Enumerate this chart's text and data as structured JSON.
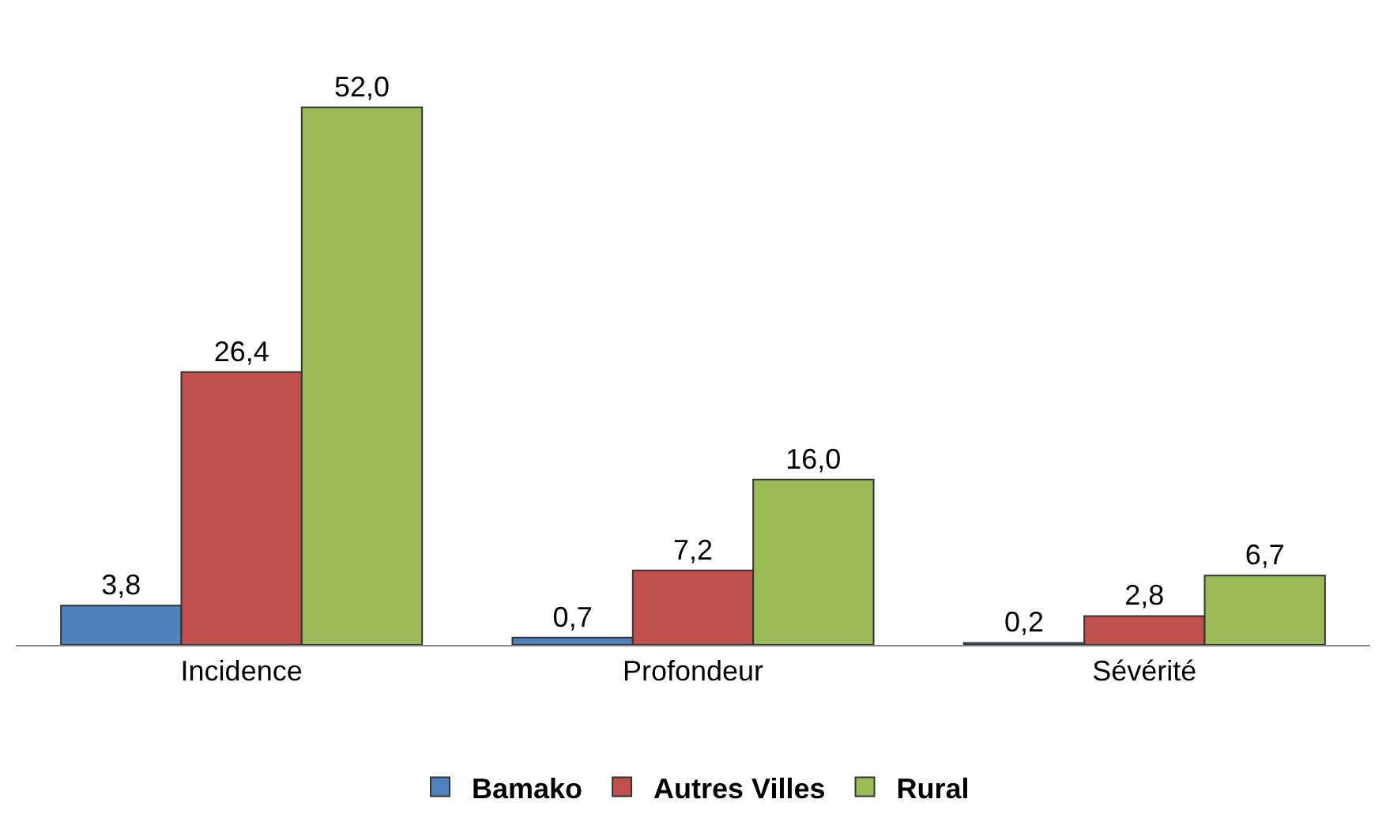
{
  "chart_data": {
    "type": "bar",
    "categories": [
      "Incidence",
      "Profondeur",
      "Sévérité"
    ],
    "series": [
      {
        "name": "Bamako",
        "color": "#4f81bd",
        "values": [
          3.8,
          0.7,
          0.2
        ],
        "value_labels": [
          "3,8",
          "0,7",
          "0,2"
        ]
      },
      {
        "name": "Autres Villes",
        "color": "#c0504d",
        "values": [
          26.4,
          7.2,
          2.8
        ],
        "value_labels": [
          "26,4",
          "7,2",
          "2,8"
        ]
      },
      {
        "name": "Rural",
        "color": "#9bbb59",
        "values": [
          52.0,
          16.0,
          6.7
        ],
        "value_labels": [
          "52,0",
          "16,0",
          "6,7"
        ]
      }
    ],
    "legend": "bottom"
  }
}
